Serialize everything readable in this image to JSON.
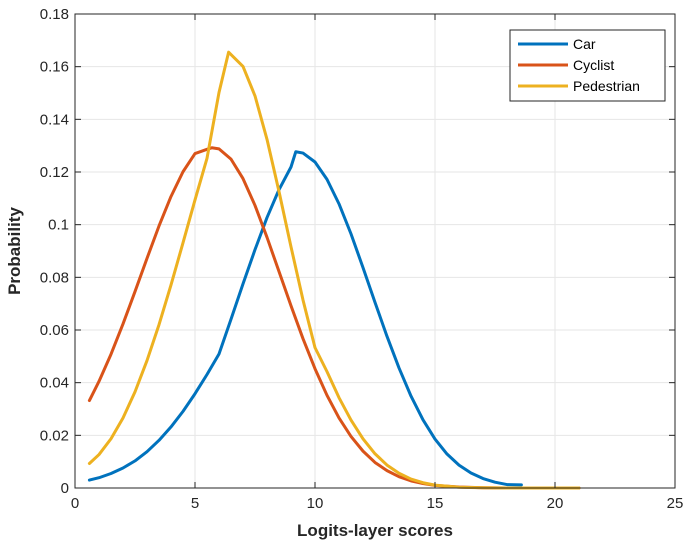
{
  "chart_data": {
    "type": "line",
    "xlabel": "Logits-layer scores",
    "ylabel": "Probability",
    "xlim": [
      0,
      25
    ],
    "ylim": [
      0,
      0.18
    ],
    "xticks": [
      0,
      5,
      10,
      15,
      20,
      25
    ],
    "xtick_labels": [
      "0",
      "5",
      "10",
      "15",
      "20",
      "25"
    ],
    "yticks": [
      0,
      0.02,
      0.04,
      0.06,
      0.08,
      0.1,
      0.12,
      0.14,
      0.16,
      0.18
    ],
    "ytick_labels": [
      "0",
      "0.02",
      "0.04",
      "0.06",
      "0.08",
      "0.1",
      "0.12",
      "0.14",
      "0.16",
      "0.18"
    ],
    "grid": true,
    "legend_position": "top-right",
    "series": [
      {
        "name": "Car",
        "color": "#0072BD",
        "x": [
          0.6,
          1,
          1.5,
          2,
          2.5,
          3,
          3.5,
          4,
          4.5,
          5,
          5.5,
          6,
          6.5,
          7,
          7.5,
          8,
          8.5,
          9,
          9.2,
          9.5,
          10,
          10.5,
          11,
          11.5,
          12,
          12.5,
          13,
          13.5,
          14,
          14.5,
          15,
          15.5,
          16,
          16.5,
          17,
          17.5,
          18,
          18.6
        ],
        "y": [
          0.003,
          0.0039,
          0.0055,
          0.0076,
          0.0103,
          0.0138,
          0.0181,
          0.0232,
          0.0291,
          0.0358,
          0.0431,
          0.0509,
          0.0641,
          0.0775,
          0.0905,
          0.1027,
          0.1133,
          0.1219,
          0.1277,
          0.1272,
          0.1238,
          0.1172,
          0.1079,
          0.0965,
          0.0837,
          0.0705,
          0.0576,
          0.0456,
          0.0349,
          0.0259,
          0.0186,
          0.0129,
          0.0087,
          0.0057,
          0.0036,
          0.0022,
          0.0013,
          0.0012
        ]
      },
      {
        "name": "Cyclist",
        "color": "#D95319",
        "x": [
          0.6,
          1,
          1.5,
          2,
          2.5,
          3,
          3.5,
          4,
          4.5,
          5,
          5.5,
          5.7,
          6,
          6.5,
          7,
          7.5,
          8,
          8.5,
          9,
          9.5,
          10,
          10.5,
          11,
          11.5,
          12,
          12.5,
          13,
          13.5,
          14,
          14.5,
          15,
          16,
          17,
          18,
          19,
          20,
          21
        ],
        "y": [
          0.0332,
          0.0405,
          0.0508,
          0.0623,
          0.0746,
          0.0872,
          0.0995,
          0.1107,
          0.1201,
          0.127,
          0.1286,
          0.1292,
          0.1288,
          0.1249,
          0.1175,
          0.1073,
          0.0952,
          0.0822,
          0.0692,
          0.0567,
          0.0453,
          0.0352,
          0.0266,
          0.0196,
          0.014,
          0.0097,
          0.0066,
          0.0043,
          0.0027,
          0.0017,
          0.001,
          0.0004,
          0.0001,
          0,
          0,
          0,
          0
        ]
      },
      {
        "name": "Pedestrian",
        "color": "#EDB120",
        "x": [
          0.6,
          1,
          1.5,
          2,
          2.5,
          3,
          3.5,
          4,
          4.5,
          5,
          5.5,
          6,
          6.4,
          7,
          7.5,
          8,
          8.5,
          9,
          9.5,
          10,
          10.5,
          11,
          11.5,
          12,
          12.5,
          13,
          13.5,
          14,
          14.5,
          15,
          16,
          17,
          18,
          19,
          20,
          21
        ],
        "y": [
          0.0093,
          0.0127,
          0.0187,
          0.0266,
          0.0365,
          0.0484,
          0.062,
          0.0771,
          0.0931,
          0.1094,
          0.1252,
          0.1502,
          0.1655,
          0.1601,
          0.1489,
          0.1324,
          0.1126,
          0.0916,
          0.0714,
          0.0533,
          0.0442,
          0.0343,
          0.0258,
          0.0187,
          0.013,
          0.0087,
          0.0056,
          0.0034,
          0.002,
          0.0011,
          0.0003,
          0.0001,
          0,
          0,
          0,
          0
        ]
      }
    ]
  }
}
